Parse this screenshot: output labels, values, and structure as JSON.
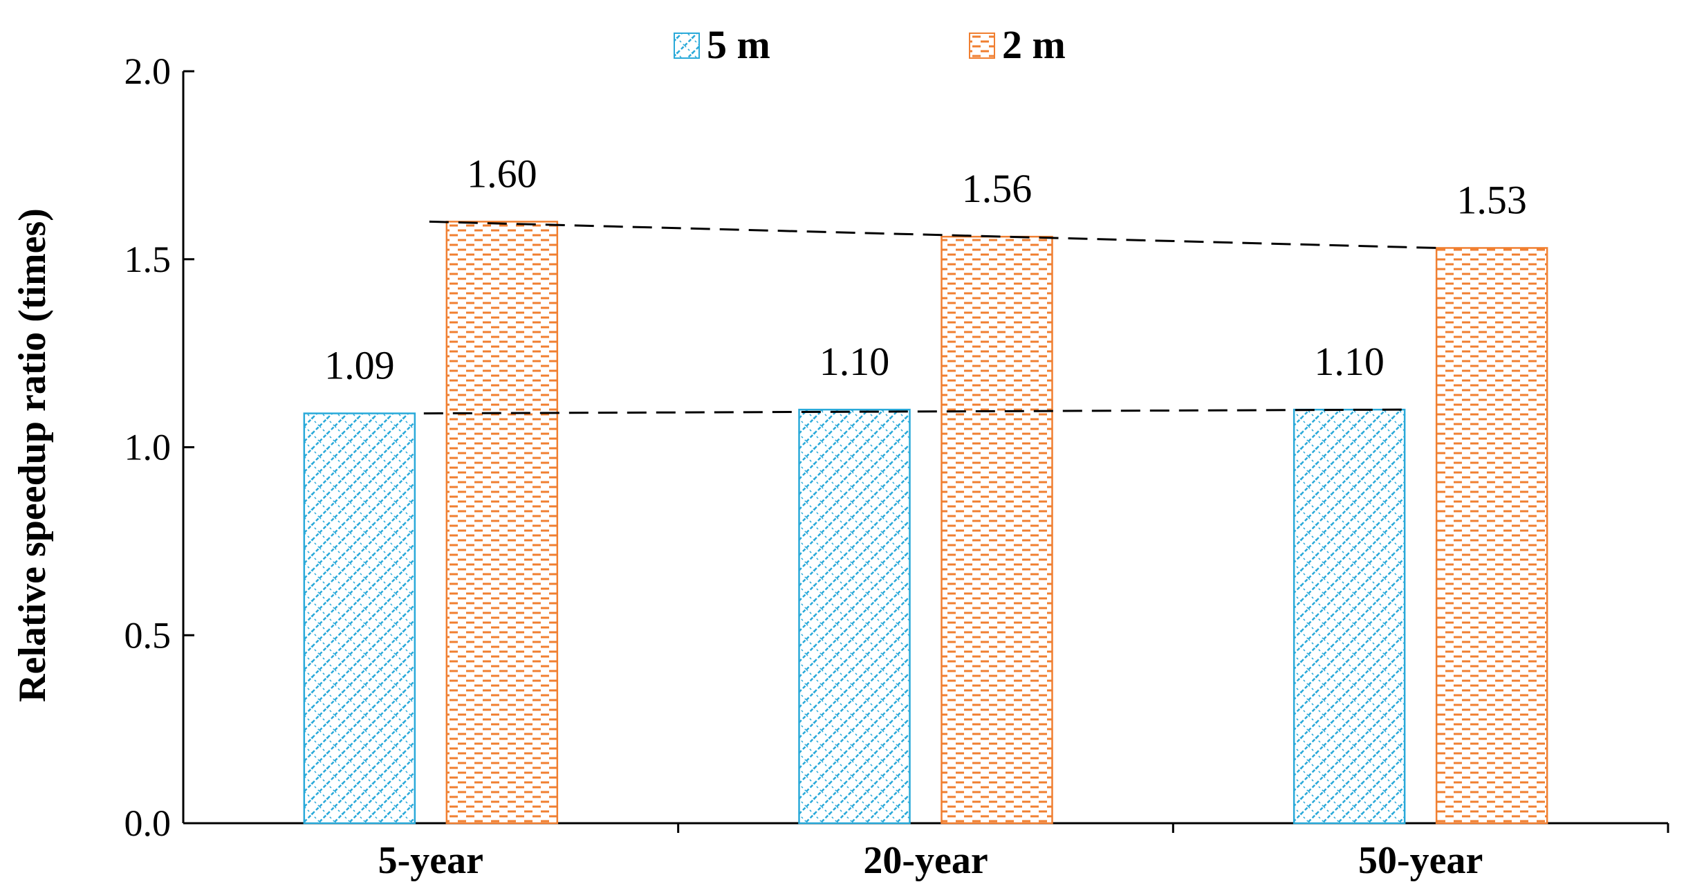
{
  "chart_data": {
    "type": "bar",
    "title": "",
    "xlabel": "",
    "ylabel": "Relative speedup ratio (times)",
    "categories": [
      "5-year",
      "20-year",
      "50-year"
    ],
    "ylim": [
      0,
      2.0
    ],
    "yticks": [
      "0.0",
      "0.5",
      "1.0",
      "1.5",
      "2.0"
    ],
    "yticks_values": [
      0,
      0.5,
      1.0,
      1.5,
      2.0
    ],
    "series": [
      {
        "name": "5 m",
        "values": [
          1.09,
          1.1,
          1.1
        ],
        "labels": [
          "1.09",
          "1.10",
          "1.10"
        ],
        "color": "#29a9d9",
        "pattern": "diagonal-cross-hatch"
      },
      {
        "name": "2 m",
        "values": [
          1.6,
          1.56,
          1.53
        ],
        "labels": [
          "1.60",
          "1.56",
          "1.53"
        ],
        "color": "#f07f31",
        "pattern": "horizontal-dashes"
      }
    ],
    "trend_lines": "dashed black lines connecting tops of each series",
    "legend_position": "top-center",
    "grid": false
  }
}
